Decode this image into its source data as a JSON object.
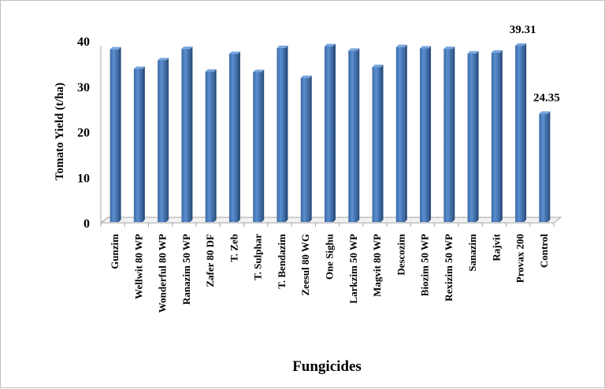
{
  "chart_data": {
    "type": "bar",
    "xlabel": "Fungicides",
    "ylabel": "Tomato  Yield (t/ha)",
    "ylim": [
      0,
      40
    ],
    "yticks": [
      0,
      10,
      20,
      30,
      40
    ],
    "grid": false,
    "bar_color": "#4f81bd",
    "categories": [
      "Gunzim",
      "Wellwit 80 WP",
      "Wonderful 80 WP",
      "Ranazim 50 WP",
      "Zafer 80 DF",
      "T. Zeb",
      "T. Sulphar",
      "T. Bendazim",
      "Zeesul 80 WG",
      "One Sighu",
      "Larkzim 50 WP",
      "Magvit 80 WP",
      "Descozim",
      "Biozim 50 WP",
      "Rexizim 50 WP",
      "Sanazim",
      "Rajvit",
      "Provax 200",
      "Control"
    ],
    "values": [
      38.5,
      34.2,
      36.1,
      38.6,
      33.6,
      37.5,
      33.5,
      38.8,
      32.2,
      39.2,
      38.2,
      34.6,
      39.0,
      38.7,
      38.6,
      37.6,
      37.8,
      39.31,
      24.35
    ],
    "data_labels": [
      {
        "category": "Provax 200",
        "text": "39.31"
      },
      {
        "category": "Control",
        "text": "24.35"
      }
    ]
  }
}
